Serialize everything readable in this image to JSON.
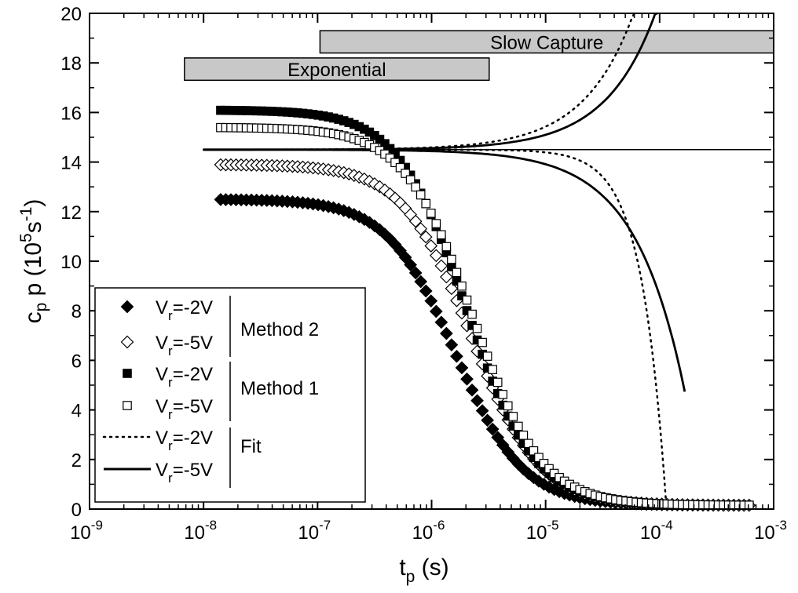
{
  "chart_data": {
    "type": "scatter",
    "x_scale": "log",
    "xlim": [
      1e-09,
      0.001
    ],
    "ylim": [
      0,
      20
    ],
    "xlabel": {
      "main": "t",
      "sub": "p",
      "unit": " (s)"
    },
    "ylabel": {
      "main": "c",
      "sub": "p",
      "mid": " p (10",
      "sup": "5",
      "mid2": "s",
      "sup2": "-1",
      "end": ")"
    },
    "x_ticks": [
      {
        "value": 1e-09,
        "base": "10",
        "exp": "-9"
      },
      {
        "value": 1e-08,
        "base": "10",
        "exp": "-8"
      },
      {
        "value": 1e-07,
        "base": "10",
        "exp": "-7"
      },
      {
        "value": 1e-06,
        "base": "10",
        "exp": "-6"
      },
      {
        "value": 1e-05,
        "base": "10",
        "exp": "-5"
      },
      {
        "value": 0.0001,
        "base": "10",
        "exp": "-4"
      },
      {
        "value": 0.001,
        "base": "10",
        "exp": "-3"
      }
    ],
    "y_ticks": [
      0,
      2,
      4,
      6,
      8,
      10,
      12,
      14,
      16,
      18,
      20
    ],
    "bands": [
      {
        "label": "Exponential",
        "x_start": 6.8e-09,
        "x_end": 3.2e-06,
        "y_bottom": 17.3,
        "y_top": 18.2
      },
      {
        "label": "Slow Capture",
        "x_start": 1.05e-07,
        "x_end": 0.001,
        "y_bottom": 18.4,
        "y_top": 19.3
      }
    ],
    "reference_line": {
      "y": 14.5,
      "x_start": 1e-08,
      "x_end": 0.00095
    },
    "series": [
      {
        "method": "Method 2",
        "vr": "-2V",
        "marker": "diamond-filled",
        "plateau": 12.5,
        "t0": 1.6e-06,
        "s": 1.45,
        "floor": 0.15
      },
      {
        "method": "Method 2",
        "vr": "-5V",
        "marker": "diamond-open",
        "plateau": 13.9,
        "t0": 2.2e-06,
        "s": 1.45,
        "floor": 0.15
      },
      {
        "method": "Method 1",
        "vr": "-2V",
        "marker": "square-filled",
        "plateau": 16.1,
        "t0": 2e-06,
        "s": 1.45,
        "floor": 0.15
      },
      {
        "method": "Method 1",
        "vr": "-5V",
        "marker": "square-open",
        "plateau": 15.4,
        "t0": 2.3e-06,
        "s": 1.45,
        "floor": 0.15
      },
      {
        "method": "Fit",
        "vr": "-2V",
        "line": "dotted",
        "upper_A": 0.93,
        "lower_cross": 0.000115
      },
      {
        "method": "Fit",
        "vr": "-5V",
        "line": "solid",
        "upper_A": 0.6,
        "lower_end": 0.00017,
        "lower_end_y": 4.5
      }
    ],
    "legend": {
      "placement": "bottom-left",
      "entries": [
        {
          "marker": "diamond-filled",
          "label_main": "V",
          "label_sub": "r",
          "label_rest": "=-2V"
        },
        {
          "marker": "diamond-open",
          "label_main": "V",
          "label_sub": "r",
          "label_rest": "=-5V"
        },
        {
          "marker": "square-filled",
          "label_main": "V",
          "label_sub": "r",
          "label_rest": "=-2V"
        },
        {
          "marker": "square-open",
          "label_main": "V",
          "label_sub": "r",
          "label_rest": "=-5V"
        },
        {
          "marker": "line-dotted",
          "label_main": "V",
          "label_sub": "r",
          "label_rest": "=-2V"
        },
        {
          "marker": "line-solid",
          "label_main": "V",
          "label_sub": "r",
          "label_rest": "=-5V"
        }
      ],
      "groups": [
        "Method 2",
        "Method 1",
        "Fit"
      ]
    }
  }
}
